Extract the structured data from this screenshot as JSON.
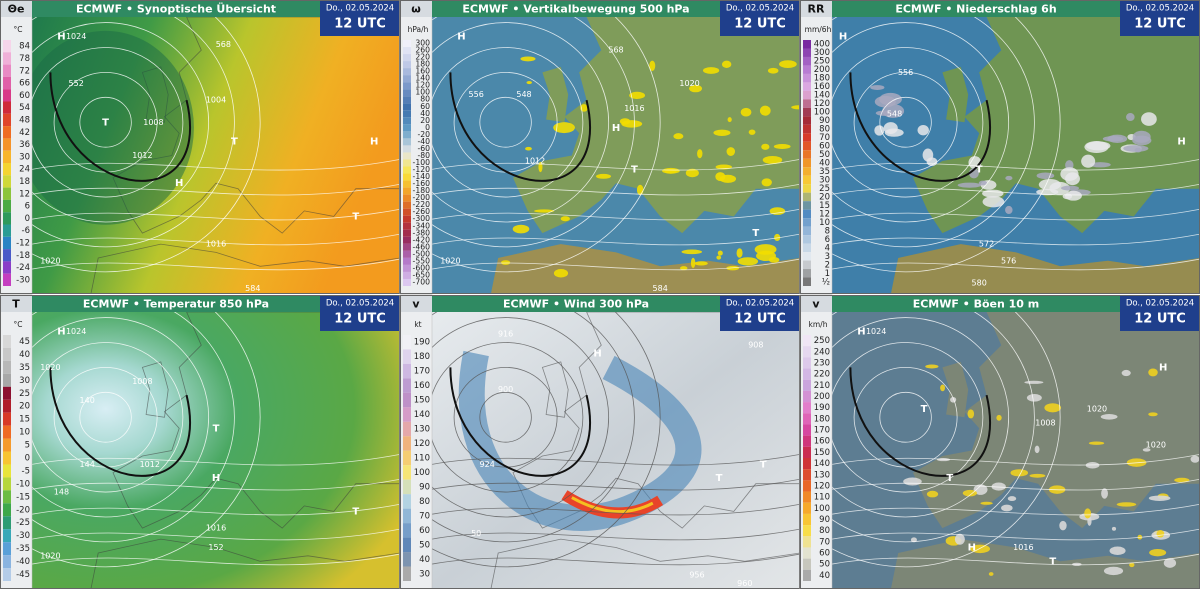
{
  "panels": [
    {
      "param": "Θe",
      "title": "ECMWF • Synoptische Übersicht",
      "date": "Do., 02.05.2024",
      "time": "12 UTC",
      "unit": "°C",
      "legend": [
        "84",
        "78",
        "72",
        "66",
        "60",
        "54",
        "48",
        "42",
        "36",
        "30",
        "24",
        "18",
        "12",
        "6",
        "0",
        "-6",
        "-12",
        "-18",
        "-24",
        "-30"
      ],
      "map_labels": [
        "H",
        "1024",
        "T",
        "1012",
        "1008",
        "T",
        "H",
        "1004",
        "568",
        "552",
        "584",
        "1020",
        "1016",
        "T",
        "H"
      ]
    },
    {
      "param": "ω",
      "title": "ECMWF • Vertikalbewegung 500 hPa",
      "date": "Do., 02.05.2024",
      "time": "12 UTC",
      "unit": "hPa/h",
      "legend": [
        "300",
        "260",
        "220",
        "180",
        "160",
        "140",
        "120",
        "100",
        "80",
        "60",
        "40",
        "20",
        "0",
        "-20",
        "-40",
        "-60",
        "-80",
        "-100",
        "-120",
        "-140",
        "-160",
        "-180",
        "-200",
        "-220",
        "-260",
        "-300",
        "-340",
        "-380",
        "-420",
        "-460",
        "-500",
        "-550",
        "-600",
        "-650",
        "-700"
      ],
      "map_labels": [
        "H",
        "548",
        "556",
        "568",
        "1012",
        "1020",
        "H",
        "T",
        "1016",
        "584",
        "T",
        "1020"
      ]
    },
    {
      "param": "RR",
      "title": "ECMWF • Niederschlag 6h",
      "date": "Do., 02.05.2024",
      "time": "12 UTC",
      "unit": "mm/6h",
      "legend": [
        "400",
        "300",
        "250",
        "200",
        "180",
        "160",
        "140",
        "120",
        "100",
        "90",
        "80",
        "70",
        "60",
        "50",
        "40",
        "35",
        "30",
        "25",
        "20",
        "15",
        "12",
        "10",
        "8",
        "6",
        "4",
        "3",
        "2",
        "1",
        "½"
      ],
      "map_labels": [
        "H",
        "556",
        "548",
        "T",
        "572",
        "576",
        "580",
        "H"
      ]
    },
    {
      "param": "T",
      "title": "ECMWF • Temperatur 850 hPa",
      "date": "Do., 02.05.2024",
      "time": "12 UTC",
      "unit": "°C",
      "legend": [
        "45",
        "40",
        "35",
        "30",
        "25",
        "20",
        "15",
        "10",
        "5",
        "0",
        "-5",
        "-10",
        "-15",
        "-20",
        "-25",
        "-30",
        "-35",
        "-40",
        "-45"
      ],
      "map_labels": [
        "H",
        "1024",
        "1020",
        "140",
        "144",
        "148",
        "1008",
        "1012",
        "T",
        "H",
        "152",
        "1016",
        "1020",
        "T"
      ]
    },
    {
      "param": "v",
      "title": "ECMWF • Wind 300 hPa",
      "date": "Do., 02.05.2024",
      "time": "12 UTC",
      "unit": "kt",
      "legend": [
        "190",
        "180",
        "170",
        "160",
        "150",
        "140",
        "130",
        "120",
        "110",
        "100",
        "90",
        "80",
        "70",
        "60",
        "50",
        "40",
        "30"
      ],
      "map_labels": [
        "916",
        "H",
        "900",
        "908",
        "924",
        "T",
        "T",
        "50",
        "956",
        "960"
      ]
    },
    {
      "param": "v",
      "title": "ECMWF • Böen 10 m",
      "date": "Do., 02.05.2024",
      "time": "12 UTC",
      "unit": "km/h",
      "legend": [
        "250",
        "240",
        "230",
        "220",
        "210",
        "200",
        "190",
        "180",
        "170",
        "160",
        "150",
        "140",
        "130",
        "120",
        "110",
        "100",
        "90",
        "80",
        "70",
        "60",
        "50",
        "40"
      ],
      "map_labels": [
        "H",
        "1024",
        "T",
        "1020",
        "1008",
        "T",
        "H",
        "1016",
        "T",
        "1020",
        "H"
      ]
    }
  ]
}
